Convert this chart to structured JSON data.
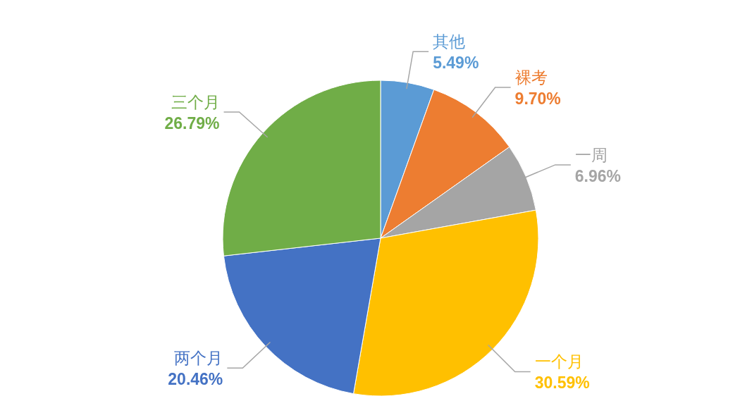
{
  "chart_data": {
    "type": "pie",
    "categories": [
      "其他",
      "裸考",
      "一周",
      "一个月",
      "两个月",
      "三个月"
    ],
    "values": [
      5.49,
      9.7,
      6.96,
      30.59,
      20.46,
      26.79
    ],
    "value_labels": [
      "5.49%",
      "9.70%",
      "6.96%",
      "30.59%",
      "20.46%",
      "26.79%"
    ],
    "colors": [
      "#5b9bd5",
      "#ed7d31",
      "#a5a5a5",
      "#ffc000",
      "#4472c4",
      "#70ad47"
    ]
  }
}
